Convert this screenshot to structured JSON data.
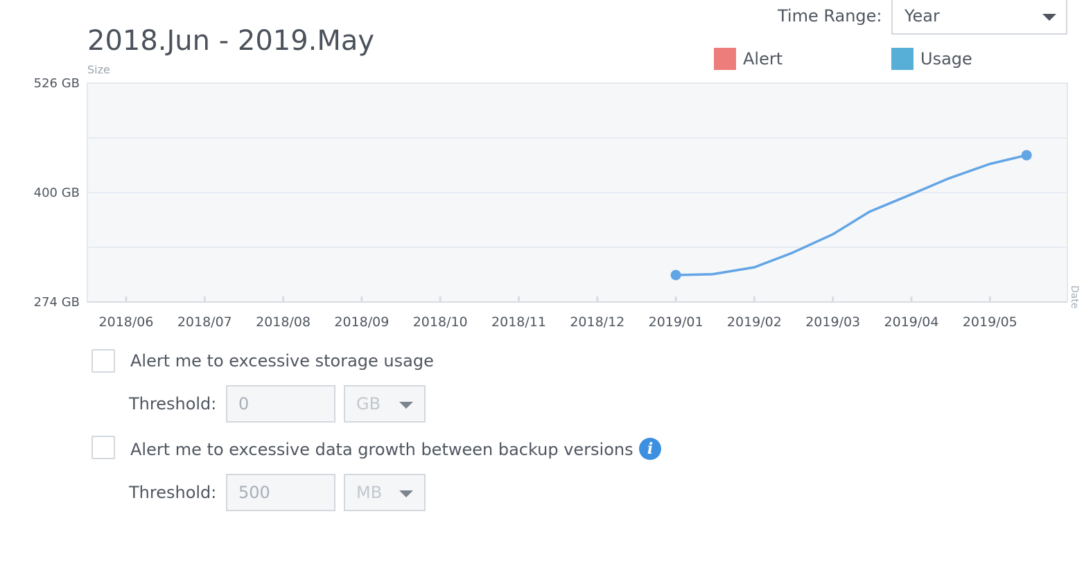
{
  "header": {
    "title": "2018.Jun - 2019.May",
    "size_label": "Size",
    "time_range_label": "Time Range:",
    "time_range_value": "Year"
  },
  "legend": {
    "alert": {
      "label": "Alert",
      "color": "#ec7d7a"
    },
    "usage": {
      "label": "Usage",
      "color": "#57afd8"
    }
  },
  "chart_data": {
    "type": "line",
    "xlabel": "Date",
    "ylabel": "Size",
    "y_ticks": [
      "526 GB",
      "400 GB",
      "274 GB"
    ],
    "y_range_gb": [
      274,
      526
    ],
    "categories": [
      "2018/06",
      "2018/07",
      "2018/08",
      "2018/09",
      "2018/10",
      "2018/11",
      "2018/12",
      "2019/01",
      "2019/02",
      "2019/03",
      "2019/04",
      "2019/05"
    ],
    "series": [
      {
        "name": "Usage",
        "color": "#62a5e5",
        "points": [
          {
            "x": "2019/01/01",
            "y": 305
          },
          {
            "x": "2019/01/15",
            "y": 306
          },
          {
            "x": "2019/02/01",
            "y": 314
          },
          {
            "x": "2019/02/15",
            "y": 330
          },
          {
            "x": "2019/03/01",
            "y": 352
          },
          {
            "x": "2019/03/15",
            "y": 378
          },
          {
            "x": "2019/04/01",
            "y": 398
          },
          {
            "x": "2019/04/15",
            "y": 416
          },
          {
            "x": "2019/05/01",
            "y": 433
          },
          {
            "x": "2019/05/15",
            "y": 443
          }
        ]
      }
    ]
  },
  "alerts": {
    "storage": {
      "label": "Alert me to excessive storage usage",
      "threshold_label": "Threshold:",
      "threshold_value": "0",
      "unit": "GB"
    },
    "growth": {
      "label": "Alert me to excessive data growth between backup versions",
      "threshold_label": "Threshold:",
      "threshold_value": "500",
      "unit": "MB",
      "info_icon": "i"
    }
  }
}
